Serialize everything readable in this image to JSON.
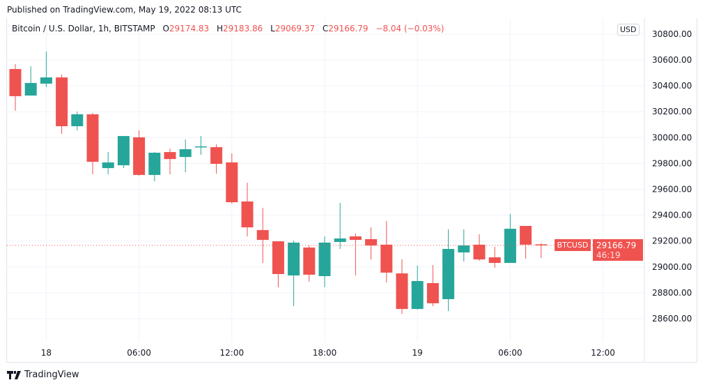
{
  "published": "Published on TradingView.com, May 19, 2022 08:13 UTC",
  "legend": {
    "symbol": "Bitcoin / U.S. Dollar, 1h, BITSTAMP",
    "o_label": "O",
    "o": "29174.83",
    "h_label": "H",
    "h": "29183.86",
    "l_label": "L",
    "l": "29069.37",
    "c_label": "C",
    "c": "29166.79",
    "change": "−8.04 (−0.03%)"
  },
  "currency": "USD",
  "last_price": {
    "ticker": "BTCUSD",
    "price": "29166.79",
    "countdown": "46:19"
  },
  "footer": {
    "brand": "TradingView"
  },
  "colors": {
    "up": "#26a69a",
    "down": "#ef5350",
    "grid": "#f0f3fa"
  },
  "chart_data": {
    "type": "candlestick",
    "title": "Bitcoin / U.S. Dollar, 1h, BITSTAMP",
    "ylim": [
      28400,
      30800
    ],
    "y_ticks": [
      "28600.00",
      "28800.00",
      "29000.00",
      "29200.00",
      "29400.00",
      "29600.00",
      "29800.00",
      "30000.00",
      "30200.00",
      "30400.00",
      "30600.00",
      "30800.00"
    ],
    "x_ticks": [
      {
        "label": "18",
        "index": 2
      },
      {
        "label": "06:00",
        "index": 8
      },
      {
        "label": "12:00",
        "index": 14
      },
      {
        "label": "18:00",
        "index": 20
      },
      {
        "label": "19",
        "index": 26
      },
      {
        "label": "06:00",
        "index": 32
      },
      {
        "label": "12:00",
        "index": 38
      }
    ],
    "start": "2022-05-17 22:00",
    "interval": "1h",
    "ohlc": [
      [
        30530,
        30568,
        30207,
        30320
      ],
      [
        30325,
        30551,
        30325,
        30422
      ],
      [
        30417,
        30665,
        30390,
        30465
      ],
      [
        30465,
        30487,
        30029,
        30088
      ],
      [
        30088,
        30201,
        30056,
        30180
      ],
      [
        30180,
        30190,
        29716,
        29813
      ],
      [
        29764,
        29888,
        29716,
        29808
      ],
      [
        29786,
        30012,
        29764,
        30012
      ],
      [
        30002,
        30056,
        29705,
        29711
      ],
      [
        29711,
        29888,
        29662,
        29883
      ],
      [
        29888,
        29915,
        29716,
        29834
      ],
      [
        29850,
        29985,
        29732,
        29910
      ],
      [
        29925,
        30012,
        29867,
        29932
      ],
      [
        29926,
        29948,
        29721,
        29797
      ],
      [
        29808,
        29878,
        29490,
        29500
      ],
      [
        29506,
        29651,
        29236,
        29306
      ],
      [
        29285,
        29457,
        29031,
        29209
      ],
      [
        29198,
        29198,
        28843,
        28945
      ],
      [
        28934,
        29203,
        28697,
        29188
      ],
      [
        29150,
        29166,
        28886,
        28940
      ],
      [
        28929,
        29236,
        28843,
        29188
      ],
      [
        29193,
        29495,
        29139,
        29220
      ],
      [
        29236,
        29258,
        28934,
        29209
      ],
      [
        29215,
        29306,
        29058,
        29166
      ],
      [
        29172,
        29355,
        28880,
        28956
      ],
      [
        28950,
        29058,
        28638,
        28675
      ],
      [
        28675,
        29010,
        28670,
        28891
      ],
      [
        28875,
        29015,
        28697,
        28719
      ],
      [
        28751,
        29290,
        28659,
        29139
      ],
      [
        29112,
        29290,
        29042,
        29166
      ],
      [
        29172,
        29252,
        29047,
        29058
      ],
      [
        29074,
        29155,
        28994,
        29031
      ],
      [
        29031,
        29409,
        29031,
        29295
      ],
      [
        29317,
        29317,
        29063,
        29172
      ],
      [
        29174.83,
        29183.86,
        29069.37,
        29166.79
      ]
    ]
  }
}
